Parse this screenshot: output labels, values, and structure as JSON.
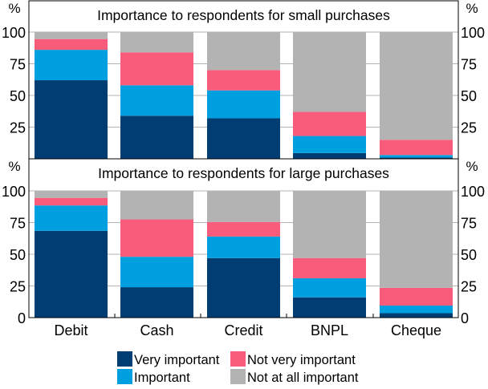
{
  "chart_data": [
    {
      "type": "bar",
      "stacked": true,
      "title": "Importance to respondents for small purchases",
      "ylabel": "%",
      "ylim": [
        0,
        100
      ],
      "yticks": [
        "25",
        "50",
        "75",
        "100"
      ],
      "grid": true,
      "categories": [
        "Debit",
        "Cash",
        "Credit",
        "BNPL",
        "Cheque"
      ],
      "series": [
        {
          "name": "Very important",
          "color": "#003d73",
          "values": [
            62,
            34,
            32,
            4.5,
            1
          ]
        },
        {
          "name": "Important",
          "color": "#00a0e0",
          "values": [
            24,
            24,
            22,
            13.5,
            2
          ]
        },
        {
          "name": "Not very important",
          "color": "#f95c7b",
          "values": [
            8.5,
            26,
            16,
            19,
            12
          ]
        },
        {
          "name": "Not at all important",
          "color": "#b3b3b3",
          "values": [
            5.5,
            16,
            30,
            63,
            85
          ]
        }
      ]
    },
    {
      "type": "bar",
      "stacked": true,
      "title": "Importance to respondents for large purchases",
      "ylabel": "%",
      "ylim": [
        0,
        100
      ],
      "yticks": [
        "0",
        "25",
        "50",
        "75",
        "100"
      ],
      "grid": true,
      "categories": [
        "Debit",
        "Cash",
        "Credit",
        "BNPL",
        "Cheque"
      ],
      "series": [
        {
          "name": "Very important",
          "color": "#003d73",
          "values": [
            68.5,
            24,
            47,
            16,
            3.5
          ]
        },
        {
          "name": "Important",
          "color": "#00a0e0",
          "values": [
            20,
            24,
            17,
            15,
            6
          ]
        },
        {
          "name": "Not very important",
          "color": "#f95c7b",
          "values": [
            6,
            29.5,
            11.5,
            16,
            14
          ]
        },
        {
          "name": "Not at all important",
          "color": "#b3b3b3",
          "values": [
            5.5,
            22.5,
            24.5,
            53,
            76.5
          ]
        }
      ]
    }
  ],
  "legend": {
    "placement": "bottom",
    "items": [
      {
        "label": "Very important",
        "color": "#003d73"
      },
      {
        "label": "Not very important",
        "color": "#f95c7b"
      },
      {
        "label": "Important",
        "color": "#00a0e0"
      },
      {
        "label": "Not at all important",
        "color": "#b3b3b3"
      }
    ]
  }
}
